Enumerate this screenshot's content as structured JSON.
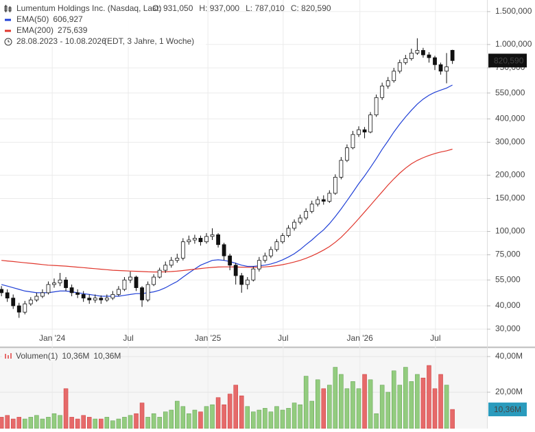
{
  "chart_data": [
    {
      "type": "candlestick",
      "title": "Lumentum Holdings Inc. (Nasdaq, Last)",
      "ohlc_labels": [
        "O: 931,050",
        "H: 937,000",
        "L: 787,010",
        "C: 820,590"
      ],
      "date_range": "28.08.2023 - 10.08.2026",
      "period": "(EDT, 3 Jahre, 1 Woche)",
      "last_label": "820,590",
      "log_scale": true,
      "grid": true,
      "up_color": "#ffffff",
      "down_color": "#111111",
      "xlim": [
        -0.25,
        82.9
      ],
      "xticks": [
        {
          "value": 8.67,
          "label": "Jan '24"
        },
        {
          "value": 21.66,
          "label": "Jul"
        },
        {
          "value": 35.25,
          "label": "Jan '25"
        },
        {
          "value": 48.1,
          "label": "Jul"
        },
        {
          "value": 61.2,
          "label": "Jan '26"
        },
        {
          "value": 74.1,
          "label": "Jul"
        }
      ],
      "ylim": [
        24300,
        1730000
      ],
      "yticks": [
        {
          "value": 1500000,
          "label": "1.500,000"
        },
        {
          "value": 1000000,
          "label": "1.000,000"
        },
        {
          "value": 750000,
          "label": "750,000"
        },
        {
          "value": 550000,
          "label": "550,000"
        },
        {
          "value": 400000,
          "label": "400,000"
        },
        {
          "value": 300000,
          "label": "300,000"
        },
        {
          "value": 200000,
          "label": "200,000"
        },
        {
          "value": 150000,
          "label": "150,000"
        },
        {
          "value": 100000,
          "label": "100,000"
        },
        {
          "value": 75000,
          "label": "75,000"
        },
        {
          "value": 55000,
          "label": "55,000"
        },
        {
          "value": 40000,
          "label": "40,000"
        },
        {
          "value": 30000,
          "label": "30,000"
        }
      ],
      "open": [
        49000,
        47000,
        44000,
        40000,
        37000,
        41000,
        43000,
        45000,
        47000,
        52000,
        53000,
        55000,
        50000,
        47000,
        46000,
        44000,
        43000,
        44000,
        43000,
        44000,
        46000,
        49000,
        55000,
        57000,
        50000,
        43000,
        52000,
        57000,
        62000,
        66000,
        70000,
        72000,
        88000,
        90000,
        92000,
        88000,
        94000,
        96000,
        85000,
        74000,
        66000,
        58000,
        52000,
        55000,
        63000,
        70000,
        74000,
        80000,
        88000,
        95000,
        104000,
        112000,
        118000,
        128000,
        140000,
        148000,
        145000,
        160000,
        195000,
        240000,
        280000,
        330000,
        350000,
        340000,
        420000,
        520000,
        600000,
        640000,
        720000,
        800000,
        840000,
        900000,
        930000,
        880000,
        850000,
        780000,
        720000,
        931050
      ],
      "high": [
        51000,
        49000,
        46000,
        41500,
        42500,
        44500,
        47000,
        49000,
        54000,
        56000,
        60000,
        57000,
        52000,
        49000,
        48000,
        46000,
        46000,
        45500,
        46000,
        48000,
        51000,
        57000,
        61000,
        58000,
        51000,
        54000,
        59000,
        64000,
        69000,
        73000,
        76000,
        92000,
        95000,
        96000,
        95000,
        98000,
        104000,
        98000,
        87000,
        76000,
        68000,
        60000,
        57000,
        65000,
        73000,
        77000,
        83000,
        91000,
        98000,
        108000,
        116000,
        123000,
        133000,
        146000,
        154000,
        156000,
        166000,
        202000,
        250000,
        292000,
        345000,
        365000,
        362000,
        435000,
        540000,
        625000,
        670000,
        750000,
        830000,
        880000,
        950000,
        1080000,
        960000,
        910000,
        870000,
        800000,
        900000,
        937000
      ],
      "low": [
        45000,
        42000,
        38500,
        34500,
        36000,
        40000,
        42000,
        44000,
        46000,
        50000,
        51000,
        48000,
        45000,
        44000,
        42000,
        41000,
        41500,
        41000,
        42000,
        43000,
        45000,
        48000,
        53000,
        48000,
        39500,
        42000,
        51000,
        56000,
        60000,
        64000,
        68000,
        70000,
        85000,
        86000,
        84000,
        86000,
        90000,
        82000,
        70000,
        62000,
        52000,
        47000,
        49000,
        54000,
        61000,
        68000,
        72000,
        78000,
        86000,
        93000,
        101000,
        109000,
        115000,
        125000,
        136000,
        139000,
        142000,
        157000,
        190000,
        235000,
        275000,
        320000,
        315000,
        335000,
        410000,
        505000,
        580000,
        625000,
        700000,
        780000,
        820000,
        880000,
        850000,
        800000,
        730000,
        690000,
        620000,
        787010
      ],
      "close": [
        47000,
        44000,
        40000,
        37000,
        41000,
        43000,
        45000,
        47000,
        52000,
        53000,
        55000,
        50000,
        47000,
        46000,
        44000,
        43000,
        44000,
        43000,
        44000,
        46000,
        49000,
        55000,
        57000,
        50000,
        43000,
        52000,
        57000,
        62000,
        66000,
        70000,
        72000,
        88000,
        90000,
        92000,
        88000,
        94000,
        96000,
        85000,
        74000,
        66000,
        58000,
        52000,
        55000,
        63000,
        70000,
        74000,
        80000,
        88000,
        95000,
        104000,
        112000,
        118000,
        128000,
        140000,
        148000,
        145000,
        160000,
        195000,
        240000,
        280000,
        330000,
        350000,
        340000,
        420000,
        520000,
        600000,
        640000,
        720000,
        800000,
        840000,
        900000,
        930000,
        880000,
        850000,
        780000,
        720000,
        760000,
        820590
      ],
      "series": [
        {
          "name": "EMA(50)",
          "color": "#1f3fd6",
          "last_label": "606,927",
          "values": [
            52000,
            51000,
            50000,
            49000,
            48000,
            47500,
            47000,
            47000,
            47000,
            47500,
            48000,
            48000,
            47500,
            47000,
            46500,
            46000,
            45500,
            45000,
            45000,
            45000,
            45000,
            45500,
            46000,
            46500,
            46500,
            47000,
            47500,
            48500,
            50000,
            52000,
            54000,
            57000,
            60000,
            63000,
            66000,
            68000,
            70000,
            70500,
            70000,
            69000,
            67500,
            66000,
            65000,
            65000,
            65500,
            66000,
            67000,
            68500,
            70500,
            73000,
            76000,
            80000,
            85000,
            90000,
            96000,
            102000,
            110000,
            120000,
            132000,
            146000,
            162000,
            180000,
            198000,
            220000,
            245000,
            275000,
            305000,
            340000,
            375000,
            410000,
            445000,
            480000,
            510000,
            535000,
            555000,
            570000,
            585000,
            606927
          ]
        },
        {
          "name": "EMA(200)",
          "color": "#e0352b",
          "last_label": "275,639",
          "values": [
            70000,
            69500,
            69000,
            68500,
            68000,
            67500,
            67000,
            66500,
            66000,
            65800,
            65500,
            65200,
            64800,
            64400,
            64000,
            63600,
            63200,
            62800,
            62400,
            62000,
            61800,
            61600,
            61400,
            61200,
            61000,
            60800,
            60700,
            60700,
            60800,
            61000,
            61300,
            61800,
            62300,
            62800,
            63300,
            63800,
            64200,
            64500,
            64600,
            64600,
            64500,
            64400,
            64300,
            64300,
            64400,
            64600,
            65000,
            65600,
            66400,
            67400,
            68600,
            70000,
            71800,
            74000,
            76500,
            79500,
            83000,
            87500,
            93000,
            100000,
            108000,
            117000,
            127000,
            138000,
            150000,
            163000,
            177000,
            191000,
            205000,
            218000,
            230000,
            240000,
            248000,
            255000,
            261000,
            266000,
            270000,
            275639
          ]
        }
      ]
    },
    {
      "type": "bar",
      "name": "Volumen(1)",
      "legend_labels": [
        {
          "label": "10,36M",
          "color": "#e0352b"
        },
        {
          "label": "10,36M",
          "color": "#2a9bbd"
        }
      ],
      "last_label": "10,36M",
      "last_color": "#2a9bbd",
      "up_color": "#93cc7f",
      "down_color": "#e66a6a",
      "xlim": [
        -0.25,
        82.9
      ],
      "ylim": [
        0,
        44600000
      ],
      "yticks": [
        {
          "value": 40000000,
          "label": "40,00M"
        },
        {
          "value": 20000000,
          "label": "20,00M"
        }
      ],
      "values": [
        6000000,
        7000000,
        5000000,
        6000000,
        5000000,
        6000000,
        7000000,
        5000000,
        6000000,
        8000000,
        7000000,
        22000000,
        6000000,
        5000000,
        7000000,
        6000000,
        5000000,
        5000000,
        6000000,
        4000000,
        5000000,
        6000000,
        7000000,
        8000000,
        14000000,
        6000000,
        8000000,
        6000000,
        9000000,
        10000000,
        15000000,
        12000000,
        8000000,
        10000000,
        9000000,
        12000000,
        13000000,
        17000000,
        13000000,
        19000000,
        24000000,
        18000000,
        12000000,
        9000000,
        10000000,
        11000000,
        9000000,
        12000000,
        10000000,
        11000000,
        14000000,
        13000000,
        29000000,
        15000000,
        27000000,
        22000000,
        24000000,
        34000000,
        30000000,
        22000000,
        26000000,
        22000000,
        30000000,
        27000000,
        8000000,
        24000000,
        20000000,
        32000000,
        24000000,
        34000000,
        26000000,
        30000000,
        28000000,
        35000000,
        22000000,
        30000000,
        24000000,
        10360000
      ]
    }
  ]
}
